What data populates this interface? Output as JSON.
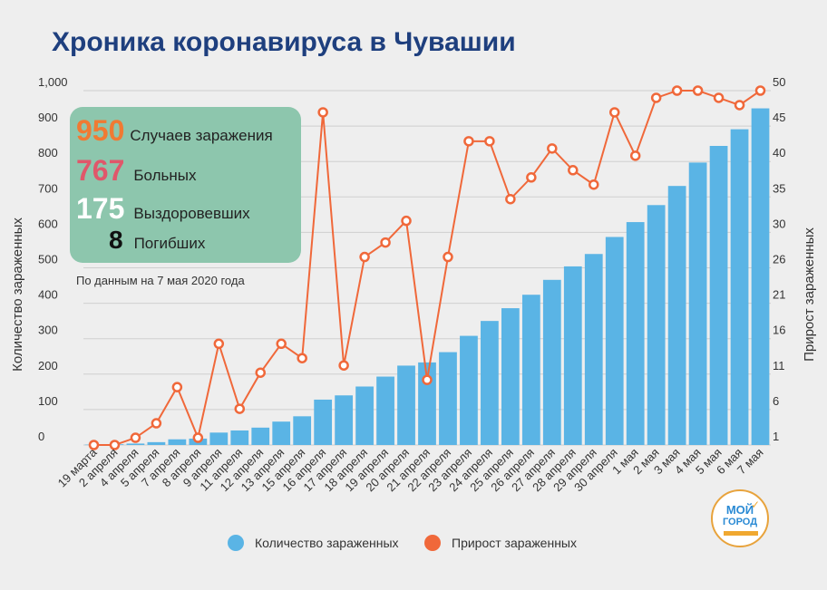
{
  "title": "Хроника коронавируса в Чувашии",
  "stats": [
    {
      "value": "950",
      "label": "Случаев заражения",
      "color": "#f07a33"
    },
    {
      "value": "767",
      "label": "Больных",
      "color": "#e0576a"
    },
    {
      "value": "175",
      "label": "Выздоровевших",
      "color": "#ffffff"
    },
    {
      "value": "8",
      "label": "Погибших",
      "color": "#111111"
    }
  ],
  "note": "По данным на 7 мая 2020 года",
  "logo": {
    "line1": "МОЙ",
    "line2": "ГОРОД"
  },
  "colors": {
    "bar": "#5ab4e5",
    "line": "#f0683a",
    "title": "#1e3f7e",
    "panel": "#8dc6ad"
  },
  "chart_data": {
    "type": "bar",
    "categories": [
      "19 марта",
      "2 апреля",
      "4 апреля",
      "5 апреля",
      "7 апреля",
      "8 апреля",
      "9 апреля",
      "11 апреля",
      "12 апреля",
      "13 апреля",
      "15 апреля",
      "16 апреля",
      "17 апреля",
      "18 апреля",
      "19 апреля",
      "20 апреля",
      "21 апреля",
      "22 апреля",
      "23 апреля",
      "24 апреля",
      "25 апреля",
      "26 апреля",
      "27 апреля",
      "28 апреля",
      "29 апреля",
      "30 апреля",
      "1 мая",
      "2 мая",
      "3 мая",
      "4 мая",
      "5 мая",
      "6 мая",
      "7 мая"
    ],
    "series": [
      {
        "name": "Количество зараженных",
        "axis": "left",
        "kind": "bar",
        "values": [
          1,
          2,
          4,
          8,
          16,
          18,
          35,
          41,
          49,
          66,
          81,
          128,
          140,
          165,
          193,
          224,
          233,
          262,
          308,
          350,
          386,
          424,
          466,
          504,
          539,
          587,
          629,
          677,
          731,
          797,
          844,
          891,
          950
        ]
      },
      {
        "name": "Прирост зараженных",
        "axis": "right",
        "kind": "line",
        "values": [
          1,
          1,
          2,
          4,
          9,
          2,
          15,
          6,
          11,
          15,
          13,
          47,
          12,
          27,
          29,
          32,
          10,
          27,
          43,
          43,
          35,
          38,
          42,
          39,
          37,
          47,
          41,
          49,
          50,
          50,
          49,
          48,
          50
        ]
      }
    ],
    "ylabel": "Количество зараженных",
    "y2label": "Прирост зараженных",
    "ylim": [
      0,
      1000
    ],
    "y2lim": [
      1,
      50
    ],
    "yticks": [
      "0",
      "100",
      "200",
      "300",
      "400",
      "500",
      "600",
      "700",
      "800",
      "900",
      "1,000"
    ],
    "y2ticks": [
      "1",
      "6",
      "11",
      "16",
      "21",
      "26",
      "30",
      "35",
      "40",
      "45",
      "50"
    ],
    "grid": true,
    "legend": "bottom"
  }
}
